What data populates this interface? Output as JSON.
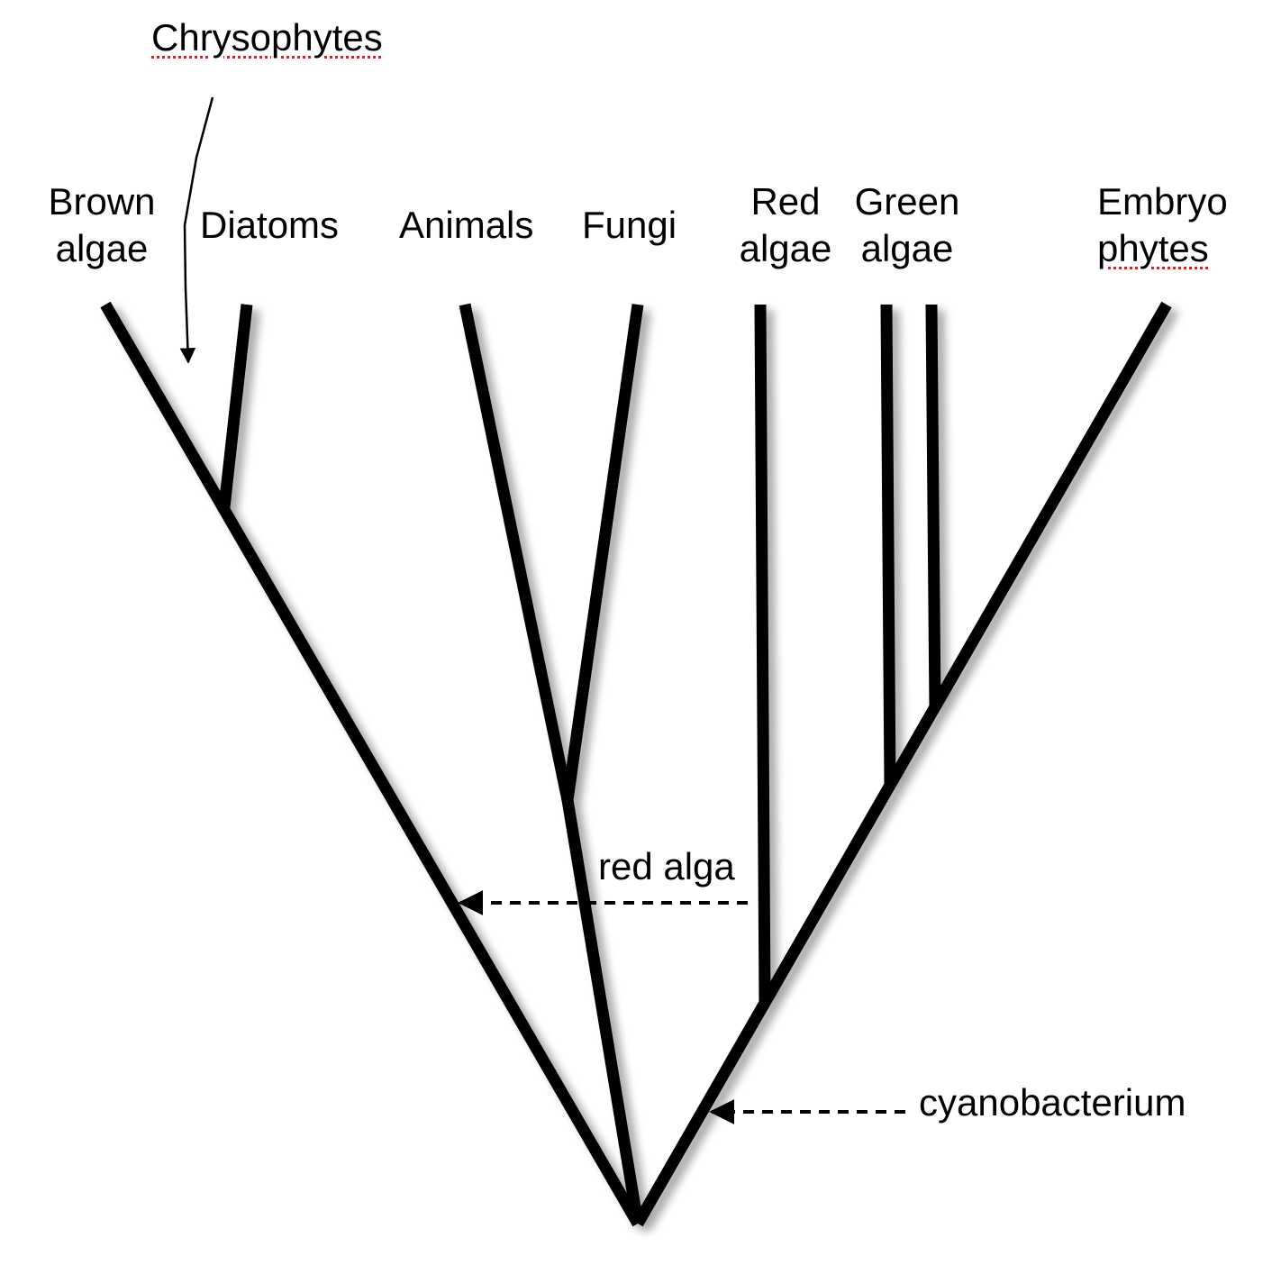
{
  "taxa": {
    "brown_algae": [
      "Brown",
      "algae"
    ],
    "diatoms": "Diatoms",
    "animals": "Animals",
    "fungi": "Fungi",
    "red_algae": [
      "Red",
      "algae"
    ],
    "green_algae": [
      "Green",
      "algae"
    ],
    "embryophytes": [
      "Embryo",
      "phytes"
    ]
  },
  "annotations": {
    "chrysophytes": "Chrysophytes",
    "red_alga": "red alga",
    "cyanobacterium": "cyanobacterium"
  }
}
